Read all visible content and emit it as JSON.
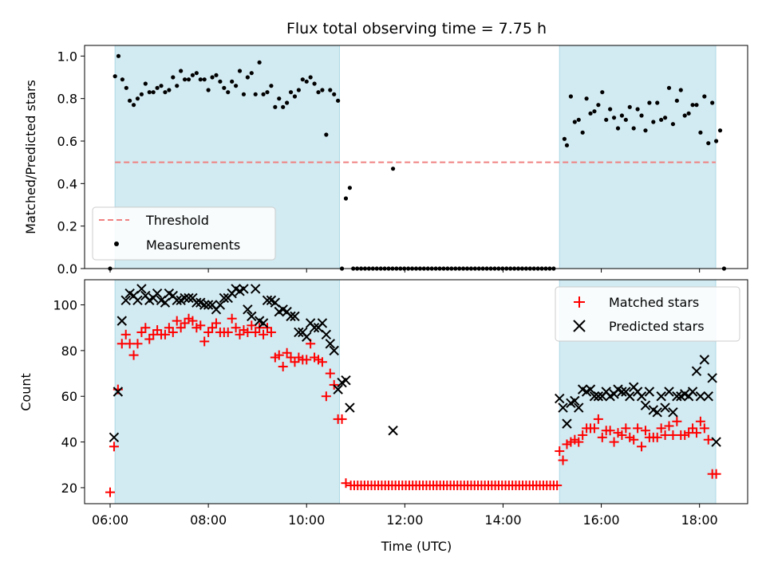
{
  "chart_data": [
    {
      "type": "scatter",
      "title": "Flux total observing time = 7.75 h",
      "ylabel": "Matched/Predicted stars",
      "xlabel": "",
      "ylim": [
        0,
        1.05
      ],
      "yticks": [
        "0.0",
        "0.2",
        "0.4",
        "0.6",
        "0.8",
        "1.0"
      ],
      "threshold": 0.5,
      "legend": {
        "placement": "lower-left",
        "threshold_label": "Threshold",
        "measurements_label": "Measurements"
      },
      "shaded_intervals_hours": [
        [
          6.1,
          10.67
        ],
        [
          15.15,
          18.33
        ]
      ],
      "colors": {
        "threshold": "#f08080",
        "shade": "#add8e6",
        "points": "#000000"
      },
      "measurements": [
        [
          6.0,
          0.0
        ],
        [
          6.1,
          0.905
        ],
        [
          6.17,
          1.0
        ],
        [
          6.25,
          0.89
        ],
        [
          6.33,
          0.85
        ],
        [
          6.4,
          0.79
        ],
        [
          6.48,
          0.77
        ],
        [
          6.56,
          0.8
        ],
        [
          6.64,
          0.82
        ],
        [
          6.72,
          0.87
        ],
        [
          6.8,
          0.83
        ],
        [
          6.88,
          0.83
        ],
        [
          6.96,
          0.85
        ],
        [
          7.04,
          0.86
        ],
        [
          7.12,
          0.83
        ],
        [
          7.2,
          0.84
        ],
        [
          7.28,
          0.9
        ],
        [
          7.36,
          0.86
        ],
        [
          7.44,
          0.93
        ],
        [
          7.52,
          0.89
        ],
        [
          7.6,
          0.89
        ],
        [
          7.68,
          0.91
        ],
        [
          7.76,
          0.92
        ],
        [
          7.84,
          0.89
        ],
        [
          7.92,
          0.89
        ],
        [
          8.0,
          0.84
        ],
        [
          8.08,
          0.9
        ],
        [
          8.16,
          0.91
        ],
        [
          8.24,
          0.88
        ],
        [
          8.32,
          0.85
        ],
        [
          8.4,
          0.83
        ],
        [
          8.48,
          0.88
        ],
        [
          8.56,
          0.86
        ],
        [
          8.64,
          0.93
        ],
        [
          8.72,
          0.82
        ],
        [
          8.8,
          0.9
        ],
        [
          8.88,
          0.92
        ],
        [
          8.96,
          0.82
        ],
        [
          9.04,
          0.97
        ],
        [
          9.12,
          0.82
        ],
        [
          9.2,
          0.83
        ],
        [
          9.28,
          0.86
        ],
        [
          9.36,
          0.76
        ],
        [
          9.44,
          0.8
        ],
        [
          9.52,
          0.76
        ],
        [
          9.6,
          0.78
        ],
        [
          9.68,
          0.83
        ],
        [
          9.76,
          0.81
        ],
        [
          9.84,
          0.84
        ],
        [
          9.92,
          0.89
        ],
        [
          10.0,
          0.88
        ],
        [
          10.08,
          0.9
        ],
        [
          10.16,
          0.87
        ],
        [
          10.24,
          0.83
        ],
        [
          10.32,
          0.84
        ],
        [
          10.4,
          0.63
        ],
        [
          10.48,
          0.84
        ],
        [
          10.56,
          0.82
        ],
        [
          10.64,
          0.79
        ],
        [
          10.72,
          0.0
        ],
        [
          10.8,
          0.33
        ],
        [
          10.88,
          0.38
        ],
        [
          11.76,
          0.47
        ],
        [
          15.25,
          0.61
        ],
        [
          15.3,
          0.58
        ],
        [
          15.38,
          0.81
        ],
        [
          15.46,
          0.69
        ],
        [
          15.54,
          0.7
        ],
        [
          15.62,
          0.64
        ],
        [
          15.7,
          0.8
        ],
        [
          15.78,
          0.73
        ],
        [
          15.86,
          0.74
        ],
        [
          15.94,
          0.77
        ],
        [
          16.02,
          0.83
        ],
        [
          16.1,
          0.7
        ],
        [
          16.18,
          0.75
        ],
        [
          16.26,
          0.71
        ],
        [
          16.34,
          0.66
        ],
        [
          16.42,
          0.72
        ],
        [
          16.5,
          0.7
        ],
        [
          16.58,
          0.76
        ],
        [
          16.66,
          0.66
        ],
        [
          16.74,
          0.75
        ],
        [
          16.82,
          0.72
        ],
        [
          16.9,
          0.65
        ],
        [
          16.98,
          0.78
        ],
        [
          17.06,
          0.69
        ],
        [
          17.14,
          0.78
        ],
        [
          17.22,
          0.7
        ],
        [
          17.3,
          0.71
        ],
        [
          17.38,
          0.85
        ],
        [
          17.46,
          0.68
        ],
        [
          17.54,
          0.79
        ],
        [
          17.62,
          0.84
        ],
        [
          17.7,
          0.72
        ],
        [
          17.78,
          0.73
        ],
        [
          17.86,
          0.77
        ],
        [
          17.94,
          0.77
        ],
        [
          18.02,
          0.64
        ],
        [
          18.1,
          0.81
        ],
        [
          18.18,
          0.59
        ],
        [
          18.26,
          0.78
        ],
        [
          18.34,
          0.6
        ],
        [
          18.42,
          0.65
        ],
        [
          18.5,
          0.0
        ]
      ],
      "zero_runs": [
        [
          10.95,
          15.1,
          0.08
        ]
      ]
    },
    {
      "type": "scatter",
      "title": "",
      "xlabel": "Time (UTC)",
      "ylabel": "Count",
      "ylim": [
        13,
        111
      ],
      "yticks": [
        "20",
        "40",
        "60",
        "80",
        "100"
      ],
      "xticks": [
        "06:00",
        "08:00",
        "10:00",
        "12:00",
        "14:00",
        "16:00",
        "18:00"
      ],
      "xlim_hours": [
        5.48,
        18.98
      ],
      "legend": {
        "placement": "upper-right",
        "matched_label": "Matched stars",
        "predicted_label": "Predicted stars"
      },
      "colors": {
        "matched": "#ff0000",
        "predicted": "#000000"
      },
      "matched": [
        [
          6.0,
          18
        ],
        [
          6.08,
          38
        ],
        [
          6.16,
          63
        ],
        [
          6.24,
          83
        ],
        [
          6.32,
          87
        ],
        [
          6.4,
          83
        ],
        [
          6.48,
          78
        ],
        [
          6.56,
          83
        ],
        [
          6.64,
          88
        ],
        [
          6.72,
          90
        ],
        [
          6.8,
          85
        ],
        [
          6.88,
          87
        ],
        [
          6.96,
          89
        ],
        [
          7.04,
          87
        ],
        [
          7.12,
          87
        ],
        [
          7.2,
          90
        ],
        [
          7.28,
          88
        ],
        [
          7.36,
          93
        ],
        [
          7.44,
          90
        ],
        [
          7.52,
          92
        ],
        [
          7.6,
          94
        ],
        [
          7.68,
          93
        ],
        [
          7.76,
          90
        ],
        [
          7.84,
          91
        ],
        [
          7.92,
          84
        ],
        [
          8.0,
          88
        ],
        [
          8.08,
          90
        ],
        [
          8.16,
          92
        ],
        [
          8.24,
          88
        ],
        [
          8.32,
          88
        ],
        [
          8.4,
          88
        ],
        [
          8.48,
          94
        ],
        [
          8.56,
          90
        ],
        [
          8.64,
          87
        ],
        [
          8.72,
          89
        ],
        [
          8.8,
          88
        ],
        [
          8.88,
          91
        ],
        [
          8.96,
          88
        ],
        [
          9.04,
          90
        ],
        [
          9.12,
          87
        ],
        [
          9.2,
          90
        ],
        [
          9.28,
          88
        ],
        [
          9.36,
          77
        ],
        [
          9.44,
          78
        ],
        [
          9.52,
          73
        ],
        [
          9.6,
          79
        ],
        [
          9.68,
          77
        ],
        [
          9.76,
          75
        ],
        [
          9.84,
          77
        ],
        [
          9.92,
          76
        ],
        [
          10.0,
          76
        ],
        [
          10.08,
          83
        ],
        [
          10.16,
          77
        ],
        [
          10.24,
          76
        ],
        [
          10.32,
          75
        ],
        [
          10.4,
          60
        ],
        [
          10.48,
          70
        ],
        [
          10.56,
          65
        ],
        [
          10.64,
          50
        ],
        [
          10.72,
          50
        ],
        [
          10.8,
          22
        ],
        [
          15.15,
          36
        ],
        [
          15.22,
          32
        ],
        [
          15.3,
          39
        ],
        [
          15.38,
          40
        ],
        [
          15.46,
          41
        ],
        [
          15.54,
          40
        ],
        [
          15.62,
          43
        ],
        [
          15.7,
          46
        ],
        [
          15.78,
          46
        ],
        [
          15.86,
          46
        ],
        [
          15.94,
          50
        ],
        [
          16.02,
          42
        ],
        [
          16.1,
          45
        ],
        [
          16.18,
          45
        ],
        [
          16.26,
          40
        ],
        [
          16.34,
          44
        ],
        [
          16.42,
          43
        ],
        [
          16.5,
          46
        ],
        [
          16.58,
          42
        ],
        [
          16.66,
          41
        ],
        [
          16.74,
          46
        ],
        [
          16.82,
          38
        ],
        [
          16.9,
          45
        ],
        [
          16.98,
          42
        ],
        [
          17.06,
          42
        ],
        [
          17.14,
          42
        ],
        [
          17.22,
          46
        ],
        [
          17.3,
          43
        ],
        [
          17.38,
          47
        ],
        [
          17.46,
          43
        ],
        [
          17.54,
          49
        ],
        [
          17.62,
          43
        ],
        [
          17.7,
          43
        ],
        [
          17.78,
          44
        ],
        [
          17.86,
          46
        ],
        [
          17.94,
          44
        ],
        [
          18.02,
          49
        ],
        [
          18.1,
          46
        ],
        [
          18.18,
          41
        ],
        [
          18.26,
          26
        ],
        [
          18.34,
          26
        ]
      ],
      "matched_flat_run": [
        10.9,
        15.1,
        0.07,
        21
      ],
      "predicted": [
        [
          6.08,
          42
        ],
        [
          6.16,
          62
        ],
        [
          6.24,
          93
        ],
        [
          6.32,
          102
        ],
        [
          6.4,
          105
        ],
        [
          6.48,
          104
        ],
        [
          6.56,
          102
        ],
        [
          6.64,
          107
        ],
        [
          6.72,
          104
        ],
        [
          6.8,
          102
        ],
        [
          6.88,
          103
        ],
        [
          6.96,
          105
        ],
        [
          7.04,
          102
        ],
        [
          7.12,
          101
        ],
        [
          7.2,
          105
        ],
        [
          7.28,
          104
        ],
        [
          7.36,
          102
        ],
        [
          7.44,
          102
        ],
        [
          7.52,
          103
        ],
        [
          7.6,
          103
        ],
        [
          7.68,
          103
        ],
        [
          7.76,
          101
        ],
        [
          7.84,
          101
        ],
        [
          7.92,
          100
        ],
        [
          8.0,
          100
        ],
        [
          8.08,
          100
        ],
        [
          8.16,
          98
        ],
        [
          8.24,
          100
        ],
        [
          8.32,
          103
        ],
        [
          8.4,
          103
        ],
        [
          8.48,
          105
        ],
        [
          8.56,
          107
        ],
        [
          8.64,
          106
        ],
        [
          8.72,
          107
        ],
        [
          8.8,
          98
        ],
        [
          8.88,
          95
        ],
        [
          8.96,
          107
        ],
        [
          9.04,
          93
        ],
        [
          9.12,
          92
        ],
        [
          9.2,
          102
        ],
        [
          9.28,
          102
        ],
        [
          9.36,
          101
        ],
        [
          9.44,
          97
        ],
        [
          9.52,
          98
        ],
        [
          9.6,
          97
        ],
        [
          9.68,
          95
        ],
        [
          9.76,
          95
        ],
        [
          9.84,
          88
        ],
        [
          9.92,
          88
        ],
        [
          10.0,
          86
        ],
        [
          10.08,
          92
        ],
        [
          10.16,
          90
        ],
        [
          10.24,
          90
        ],
        [
          10.32,
          92
        ],
        [
          10.4,
          87
        ],
        [
          10.48,
          83
        ],
        [
          10.56,
          80
        ],
        [
          10.64,
          63
        ],
        [
          10.72,
          66
        ],
        [
          10.8,
          67
        ],
        [
          10.88,
          55
        ],
        [
          11.76,
          45
        ],
        [
          15.15,
          59
        ],
        [
          15.22,
          55
        ],
        [
          15.3,
          48
        ],
        [
          15.38,
          57
        ],
        [
          15.46,
          58
        ],
        [
          15.54,
          55
        ],
        [
          15.62,
          63
        ],
        [
          15.7,
          62
        ],
        [
          15.78,
          63
        ],
        [
          15.86,
          60
        ],
        [
          15.94,
          60
        ],
        [
          16.02,
          60
        ],
        [
          16.1,
          62
        ],
        [
          16.18,
          60
        ],
        [
          16.26,
          61
        ],
        [
          16.34,
          63
        ],
        [
          16.42,
          62
        ],
        [
          16.5,
          62
        ],
        [
          16.58,
          60
        ],
        [
          16.66,
          64
        ],
        [
          16.74,
          62
        ],
        [
          16.82,
          60
        ],
        [
          16.9,
          56
        ],
        [
          16.98,
          62
        ],
        [
          17.06,
          54
        ],
        [
          17.14,
          53
        ],
        [
          17.22,
          60
        ],
        [
          17.3,
          55
        ],
        [
          17.38,
          62
        ],
        [
          17.46,
          53
        ],
        [
          17.54,
          60
        ],
        [
          17.62,
          60
        ],
        [
          17.7,
          61
        ],
        [
          17.78,
          60
        ],
        [
          17.86,
          62
        ],
        [
          17.94,
          71
        ],
        [
          18.02,
          60
        ],
        [
          18.1,
          76
        ],
        [
          18.18,
          60
        ],
        [
          18.26,
          68
        ],
        [
          18.34,
          40
        ]
      ]
    }
  ]
}
